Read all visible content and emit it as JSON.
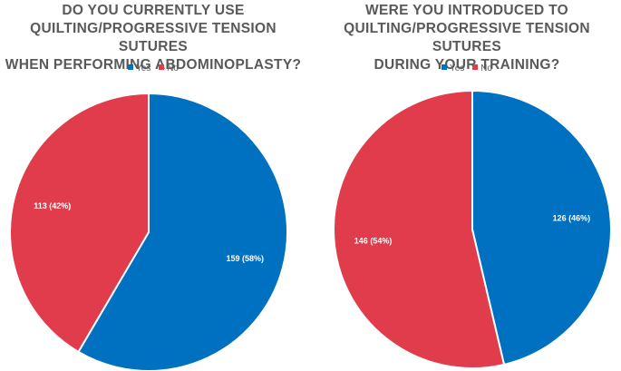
{
  "chart_data": [
    {
      "type": "pie",
      "title": "DO YOU CURRENTLY USE\nQUILTING/PROGRESSIVE TENSION SUTURES\nWHEN PERFORMING ABDOMINOPLASTY?",
      "legend_position": "top",
      "slices": [
        {
          "name": "Yes",
          "value": 159,
          "label": "159 (58%)",
          "color": "#0070C0"
        },
        {
          "name": "No",
          "value": 113,
          "label": "113 (42%)",
          "color": "#E03C4B"
        }
      ]
    },
    {
      "type": "pie",
      "title": "WERE YOU INTRODUCED TO\nQUILTING/PROGRESSIVE TENSION SUTURES\nDURING YOUR TRAINING?",
      "legend_position": "top",
      "slices": [
        {
          "name": "Yes",
          "value": 126,
          "label": "126 (46%)",
          "color": "#0070C0"
        },
        {
          "name": "No",
          "value": 146,
          "label": "146 (54%)",
          "color": "#E03C4B"
        }
      ]
    }
  ]
}
